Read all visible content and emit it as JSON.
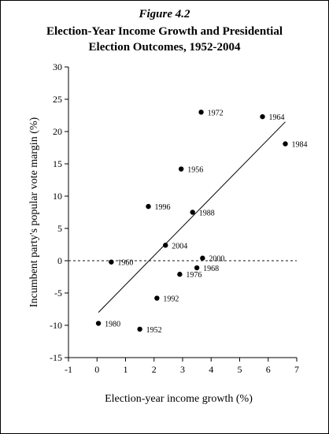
{
  "figure_label": "Figure 4.2",
  "title_line1": "Election-Year Income Growth and Presidential",
  "title_line2": "Election Outcomes, 1952-2004",
  "chart_data": {
    "type": "scatter",
    "title": "Election-Year Income Growth and Presidential Election Outcomes, 1952-2004",
    "xlabel": "Election-year income growth (%)",
    "ylabel": "Incumbent party's popular vote margin (%)",
    "xlim": [
      -1,
      7
    ],
    "ylim": [
      -15,
      30
    ],
    "xticks": [
      -1,
      0,
      1,
      2,
      3,
      4,
      5,
      6,
      7
    ],
    "yticks": [
      -15,
      -10,
      -5,
      0,
      5,
      10,
      15,
      20,
      25,
      30
    ],
    "grid": false,
    "legend": "none",
    "reference_line": {
      "y": 0,
      "style": "dashed"
    },
    "trend_line": {
      "x": [
        0.05,
        6.6
      ],
      "y": [
        -8.0,
        21.5
      ]
    },
    "points": [
      {
        "label": "1952",
        "x": 1.5,
        "y": -10.6
      },
      {
        "label": "1956",
        "x": 2.95,
        "y": 14.2
      },
      {
        "label": "1960",
        "x": 0.5,
        "y": -0.2
      },
      {
        "label": "1964",
        "x": 5.8,
        "y": 22.3
      },
      {
        "label": "1968",
        "x": 3.5,
        "y": -1.1
      },
      {
        "label": "1972",
        "x": 3.65,
        "y": 23.0
      },
      {
        "label": "1976",
        "x": 2.9,
        "y": -2.1
      },
      {
        "label": "1980",
        "x": 0.05,
        "y": -9.7
      },
      {
        "label": "1984",
        "x": 6.6,
        "y": 18.1
      },
      {
        "label": "1988",
        "x": 3.35,
        "y": 7.5
      },
      {
        "label": "1992",
        "x": 2.1,
        "y": -5.8
      },
      {
        "label": "1996",
        "x": 1.8,
        "y": 8.4
      },
      {
        "label": "2000",
        "x": 3.7,
        "y": 0.4
      },
      {
        "label": "2004",
        "x": 2.4,
        "y": 2.4
      }
    ]
  }
}
